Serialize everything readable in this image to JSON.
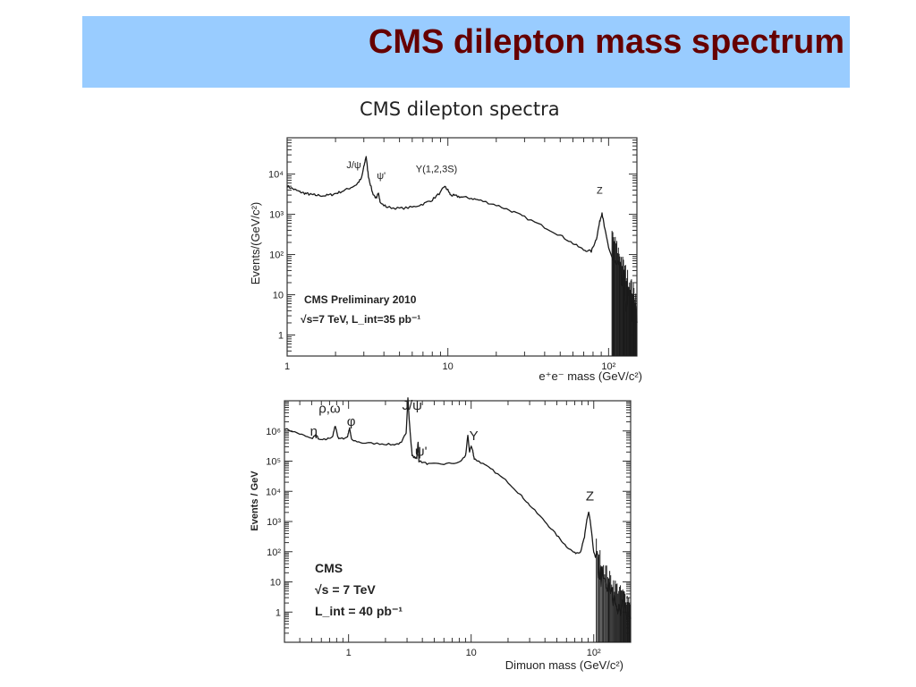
{
  "slide": {
    "title": "CMS dilepton mass spectrum",
    "caption": "CMS dilepton spectra",
    "accent_color": "#99ccff",
    "title_color": "#660000"
  },
  "chart_data": [
    {
      "type": "line",
      "name": "electron",
      "xscale": "log",
      "yscale": "log",
      "xlim": [
        1,
        150
      ],
      "ylim": [
        0.3,
        80000
      ],
      "xlabel": "e⁺e⁻ mass (GeV/c²)",
      "ylabel": "Events/(GeV/c²)",
      "x_ticks": [
        {
          "v": 1,
          "label": "1"
        },
        {
          "v": 10,
          "label": "10"
        },
        {
          "v": 100,
          "label": "10²"
        }
      ],
      "y_ticks": [
        {
          "v": 1,
          "label": "1"
        },
        {
          "v": 10,
          "label": "10"
        },
        {
          "v": 100,
          "label": "10²"
        },
        {
          "v": 1000,
          "label": "10³"
        },
        {
          "v": 10000,
          "label": "10⁴"
        }
      ],
      "annotations": [
        {
          "text": "J/ψ",
          "x": 2.6,
          "y": 14000
        },
        {
          "text": "ψ'",
          "x": 3.85,
          "y": 7500
        },
        {
          "text": "Υ(1,2,3S)",
          "x": 8.5,
          "y": 11000
        },
        {
          "text": "Z",
          "x": 88,
          "y": 3300
        }
      ],
      "legend": [
        "CMS Preliminary 2010",
        "√s=7 TeV, L_int=35 pb⁻¹"
      ],
      "points": [
        [
          1.0,
          5000
        ],
        [
          1.1,
          4200
        ],
        [
          1.2,
          3600
        ],
        [
          1.3,
          3300
        ],
        [
          1.4,
          3100
        ],
        [
          1.5,
          3000
        ],
        [
          1.7,
          2900
        ],
        [
          1.9,
          3100
        ],
        [
          2.1,
          3500
        ],
        [
          2.4,
          4300
        ],
        [
          2.7,
          5500
        ],
        [
          2.9,
          7800
        ],
        [
          3.0,
          15000
        ],
        [
          3.1,
          28000
        ],
        [
          3.2,
          9000
        ],
        [
          3.4,
          3400
        ],
        [
          3.6,
          2400
        ],
        [
          3.7,
          3600
        ],
        [
          3.8,
          1900
        ],
        [
          4.2,
          1500
        ],
        [
          5.0,
          1400
        ],
        [
          6.0,
          1500
        ],
        [
          7.0,
          1800
        ],
        [
          8.0,
          2300
        ],
        [
          9.0,
          3500
        ],
        [
          9.5,
          5000
        ],
        [
          10.0,
          4000
        ],
        [
          10.4,
          3000
        ],
        [
          11,
          2900
        ],
        [
          12,
          2700
        ],
        [
          14,
          2500
        ],
        [
          16,
          2200
        ],
        [
          20,
          1700
        ],
        [
          25,
          1200
        ],
        [
          30,
          850
        ],
        [
          40,
          480
        ],
        [
          50,
          300
        ],
        [
          60,
          190
        ],
        [
          70,
          130
        ],
        [
          78,
          120
        ],
        [
          84,
          250
        ],
        [
          88,
          650
        ],
        [
          91,
          1100
        ],
        [
          94,
          500
        ],
        [
          100,
          150
        ],
        [
          110,
          50
        ],
        [
          120,
          20
        ],
        [
          130,
          8
        ],
        [
          140,
          4
        ],
        [
          150,
          2
        ]
      ]
    },
    {
      "type": "line",
      "name": "muon",
      "xscale": "log",
      "yscale": "log",
      "xlim": [
        0.3,
        200
      ],
      "ylim": [
        0.1,
        10000000
      ],
      "xlabel": "Dimuon mass (GeV/c²)",
      "ylabel": "Events / GeV",
      "x_ticks": [
        {
          "v": 1,
          "label": "1"
        },
        {
          "v": 10,
          "label": "10"
        },
        {
          "v": 100,
          "label": "10²"
        }
      ],
      "y_ticks": [
        {
          "v": 1,
          "label": "1"
        },
        {
          "v": 10,
          "label": "10"
        },
        {
          "v": 100,
          "label": "10²"
        },
        {
          "v": 1000,
          "label": "10³"
        },
        {
          "v": 10000,
          "label": "10⁴"
        },
        {
          "v": 100000,
          "label": "10⁵"
        },
        {
          "v": 1000000,
          "label": "10⁶"
        }
      ],
      "annotations": [
        {
          "text": "η",
          "x": 0.52,
          "y": 700000
        },
        {
          "text": "ρ,ω",
          "x": 0.7,
          "y": 4000000
        },
        {
          "text": "φ",
          "x": 1.05,
          "y": 1500000
        },
        {
          "text": "J/ψ",
          "x": 3.3,
          "y": 5000000
        },
        {
          "text": "ψ'",
          "x": 3.9,
          "y": 150000
        },
        {
          "text": "Υ",
          "x": 10.5,
          "y": 500000
        },
        {
          "text": "Z",
          "x": 93,
          "y": 5000
        }
      ],
      "legend": [
        "CMS",
        "√s = 7 TeV",
        "L_int = 40 pb⁻¹"
      ],
      "points": [
        [
          0.3,
          1200000
        ],
        [
          0.4,
          800000
        ],
        [
          0.5,
          550000
        ],
        [
          0.54,
          750000
        ],
        [
          0.58,
          500000
        ],
        [
          0.65,
          520000
        ],
        [
          0.74,
          650000
        ],
        [
          0.78,
          1500000
        ],
        [
          0.82,
          600000
        ],
        [
          0.9,
          550000
        ],
        [
          0.98,
          650000
        ],
        [
          1.02,
          1200000
        ],
        [
          1.06,
          500000
        ],
        [
          1.3,
          400000
        ],
        [
          1.8,
          380000
        ],
        [
          2.3,
          350000
        ],
        [
          2.7,
          400000
        ],
        [
          2.95,
          900000
        ],
        [
          3.05,
          12000000
        ],
        [
          3.12,
          2500000
        ],
        [
          3.3,
          150000
        ],
        [
          3.6,
          120000
        ],
        [
          3.69,
          450000
        ],
        [
          3.75,
          100000
        ],
        [
          4.5,
          80000
        ],
        [
          6.0,
          80000
        ],
        [
          8.0,
          90000
        ],
        [
          9.0,
          150000
        ],
        [
          9.4,
          700000
        ],
        [
          9.7,
          200000
        ],
        [
          10.0,
          320000
        ],
        [
          10.3,
          220000
        ],
        [
          10.6,
          120000
        ],
        [
          12,
          90000
        ],
        [
          15,
          50000
        ],
        [
          20,
          20000
        ],
        [
          25,
          8000
        ],
        [
          30,
          3500
        ],
        [
          40,
          1000
        ],
        [
          50,
          350
        ],
        [
          60,
          150
        ],
        [
          70,
          90
        ],
        [
          78,
          100
        ],
        [
          84,
          300
        ],
        [
          88,
          1200
        ],
        [
          91,
          2000
        ],
        [
          94,
          900
        ],
        [
          100,
          100
        ],
        [
          110,
          25
        ],
        [
          120,
          10
        ],
        [
          140,
          3
        ],
        [
          160,
          1.5
        ],
        [
          200,
          0.6
        ]
      ]
    }
  ]
}
